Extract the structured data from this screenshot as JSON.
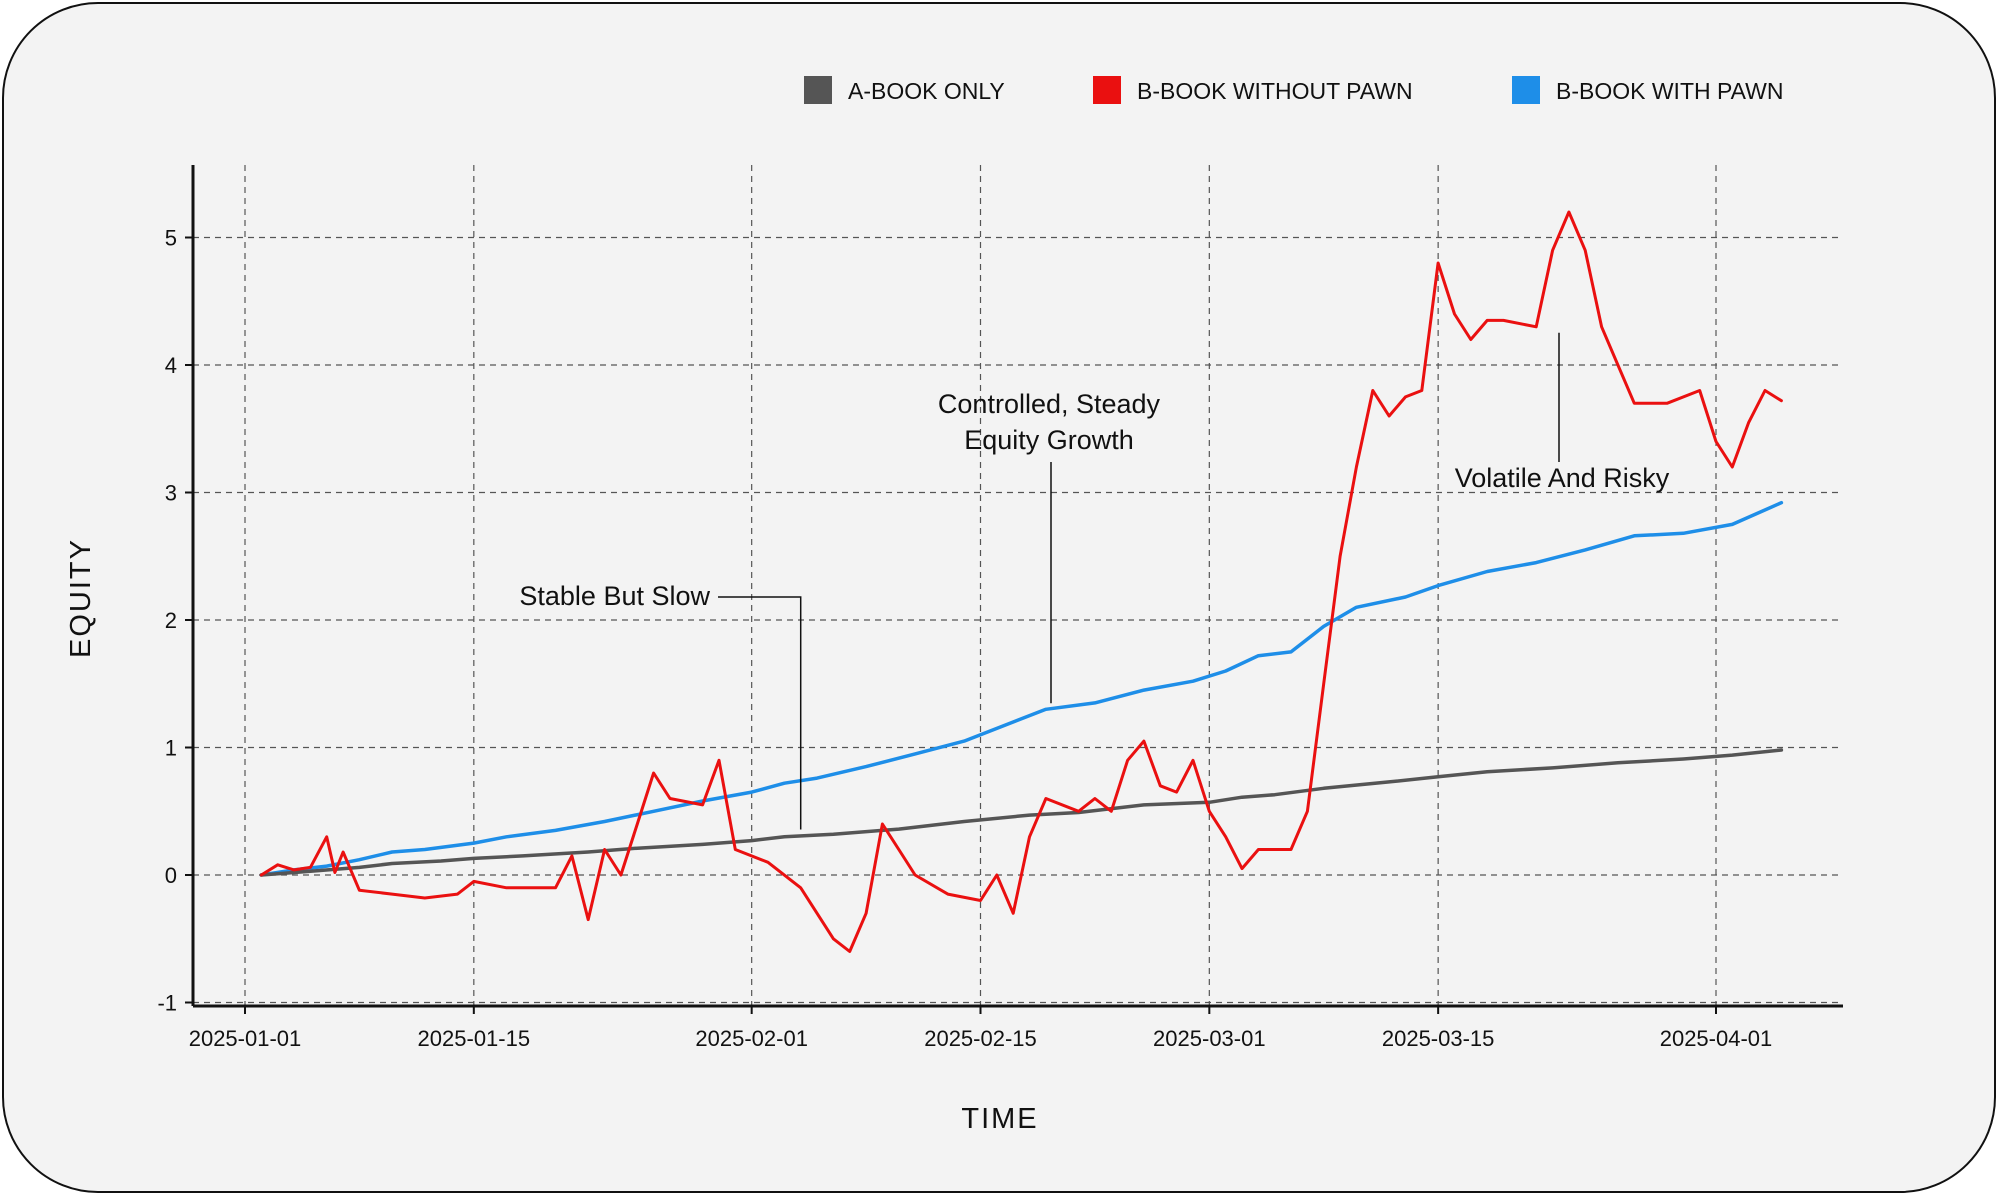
{
  "chart_data": {
    "type": "line",
    "xlabel": "TIME",
    "ylabel": "EQUITY",
    "x_range": [
      "2025-01-01",
      "2025-04-06"
    ],
    "ylim": [
      -1,
      5.5
    ],
    "x_ticks": [
      "2025-01-01",
      "2025-01-15",
      "2025-02-01",
      "2025-02-15",
      "2025-03-01",
      "2025-03-15",
      "2025-04-01"
    ],
    "y_ticks": [
      -1,
      0,
      1,
      2,
      3,
      4,
      5
    ],
    "grid": true,
    "legend_position": "top-right",
    "series": [
      {
        "name": "A-BOOK ONLY",
        "color": "#555555",
        "points": [
          [
            "2025-01-02",
            0.0
          ],
          [
            "2025-01-05",
            0.03
          ],
          [
            "2025-01-08",
            0.06
          ],
          [
            "2025-01-10",
            0.09
          ],
          [
            "2025-01-13",
            0.11
          ],
          [
            "2025-01-15",
            0.13
          ],
          [
            "2025-01-18",
            0.15
          ],
          [
            "2025-01-22",
            0.18
          ],
          [
            "2025-01-25",
            0.21
          ],
          [
            "2025-01-29",
            0.24
          ],
          [
            "2025-02-01",
            0.27
          ],
          [
            "2025-02-03",
            0.3
          ],
          [
            "2025-02-06",
            0.32
          ],
          [
            "2025-02-10",
            0.36
          ],
          [
            "2025-02-14",
            0.42
          ],
          [
            "2025-02-18",
            0.47
          ],
          [
            "2025-02-21",
            0.49
          ],
          [
            "2025-02-25",
            0.55
          ],
          [
            "2025-03-01",
            0.57
          ],
          [
            "2025-03-03",
            0.61
          ],
          [
            "2025-03-05",
            0.63
          ],
          [
            "2025-03-08",
            0.68
          ],
          [
            "2025-03-12",
            0.73
          ],
          [
            "2025-03-15",
            0.77
          ],
          [
            "2025-03-18",
            0.81
          ],
          [
            "2025-03-22",
            0.84
          ],
          [
            "2025-03-26",
            0.88
          ],
          [
            "2025-03-30",
            0.91
          ],
          [
            "2025-04-02",
            0.94
          ],
          [
            "2025-04-05",
            0.98
          ]
        ]
      },
      {
        "name": "B-BOOK WITHOUT PAWN",
        "color": "#ea1010",
        "points": [
          [
            "2025-01-02",
            0.0
          ],
          [
            "2025-01-03",
            0.08
          ],
          [
            "2025-01-04",
            0.04
          ],
          [
            "2025-01-05",
            0.06
          ],
          [
            "2025-01-06",
            0.3
          ],
          [
            "2025-01-06.5",
            0.02
          ],
          [
            "2025-01-07",
            0.18
          ],
          [
            "2025-01-08",
            -0.12
          ],
          [
            "2025-01-10",
            -0.15
          ],
          [
            "2025-01-12",
            -0.18
          ],
          [
            "2025-01-14",
            -0.15
          ],
          [
            "2025-01-15",
            -0.05
          ],
          [
            "2025-01-17",
            -0.1
          ],
          [
            "2025-01-20",
            -0.1
          ],
          [
            "2025-01-21",
            0.15
          ],
          [
            "2025-01-22",
            -0.35
          ],
          [
            "2025-01-23",
            0.2
          ],
          [
            "2025-01-24",
            0.0
          ],
          [
            "2025-01-25",
            0.4
          ],
          [
            "2025-01-26",
            0.8
          ],
          [
            "2025-01-27",
            0.6
          ],
          [
            "2025-01-29",
            0.55
          ],
          [
            "2025-01-30",
            0.9
          ],
          [
            "2025-01-31",
            0.2
          ],
          [
            "2025-02-02",
            0.1
          ],
          [
            "2025-02-04",
            -0.1
          ],
          [
            "2025-02-06",
            -0.5
          ],
          [
            "2025-02-07",
            -0.6
          ],
          [
            "2025-02-08",
            -0.3
          ],
          [
            "2025-02-09",
            0.4
          ],
          [
            "2025-02-10",
            0.2
          ],
          [
            "2025-02-11",
            0.0
          ],
          [
            "2025-02-13",
            -0.15
          ],
          [
            "2025-02-15",
            -0.2
          ],
          [
            "2025-02-16",
            0.0
          ],
          [
            "2025-02-17",
            -0.3
          ],
          [
            "2025-02-18",
            0.3
          ],
          [
            "2025-02-19",
            0.6
          ],
          [
            "2025-02-21",
            0.5
          ],
          [
            "2025-02-22",
            0.6
          ],
          [
            "2025-02-23",
            0.5
          ],
          [
            "2025-02-24",
            0.9
          ],
          [
            "2025-02-25",
            1.05
          ],
          [
            "2025-02-26",
            0.7
          ],
          [
            "2025-02-27",
            0.65
          ],
          [
            "2025-02-28",
            0.9
          ],
          [
            "2025-03-01",
            0.5
          ],
          [
            "2025-03-02",
            0.3
          ],
          [
            "2025-03-03",
            0.05
          ],
          [
            "2025-03-04",
            0.2
          ],
          [
            "2025-03-06",
            0.2
          ],
          [
            "2025-03-07",
            0.5
          ],
          [
            "2025-03-08",
            1.5
          ],
          [
            "2025-03-09",
            2.5
          ],
          [
            "2025-03-10",
            3.2
          ],
          [
            "2025-03-11",
            3.8
          ],
          [
            "2025-03-12",
            3.6
          ],
          [
            "2025-03-13",
            3.75
          ],
          [
            "2025-03-14",
            3.8
          ],
          [
            "2025-03-15",
            4.8
          ],
          [
            "2025-03-16",
            4.4
          ],
          [
            "2025-03-17",
            4.2
          ],
          [
            "2025-03-18",
            4.35
          ],
          [
            "2025-03-19",
            4.35
          ],
          [
            "2025-03-21",
            4.3
          ],
          [
            "2025-03-22",
            4.9
          ],
          [
            "2025-03-23",
            5.2
          ],
          [
            "2025-03-24",
            4.9
          ],
          [
            "2025-03-25",
            4.3
          ],
          [
            "2025-03-26",
            4.0
          ],
          [
            "2025-03-27",
            3.7
          ],
          [
            "2025-03-29",
            3.7
          ],
          [
            "2025-03-31",
            3.8
          ],
          [
            "2025-04-01",
            3.4
          ],
          [
            "2025-04-02",
            3.2
          ],
          [
            "2025-04-03",
            3.55
          ],
          [
            "2025-04-04",
            3.8
          ],
          [
            "2025-04-05",
            3.72
          ]
        ]
      },
      {
        "name": "B-BOOK WITH PAWN",
        "color": "#1e8ee8",
        "points": [
          [
            "2025-01-02",
            0.0
          ],
          [
            "2025-01-04",
            0.04
          ],
          [
            "2025-01-06",
            0.07
          ],
          [
            "2025-01-08",
            0.12
          ],
          [
            "2025-01-10",
            0.18
          ],
          [
            "2025-01-12",
            0.2
          ],
          [
            "2025-01-15",
            0.25
          ],
          [
            "2025-01-17",
            0.3
          ],
          [
            "2025-01-20",
            0.35
          ],
          [
            "2025-01-23",
            0.42
          ],
          [
            "2025-01-26",
            0.5
          ],
          [
            "2025-01-29",
            0.58
          ],
          [
            "2025-02-01",
            0.65
          ],
          [
            "2025-02-03",
            0.72
          ],
          [
            "2025-02-05",
            0.76
          ],
          [
            "2025-02-08",
            0.85
          ],
          [
            "2025-02-11",
            0.95
          ],
          [
            "2025-02-14",
            1.05
          ],
          [
            "2025-02-17",
            1.2
          ],
          [
            "2025-02-19",
            1.3
          ],
          [
            "2025-02-22",
            1.35
          ],
          [
            "2025-02-25",
            1.45
          ],
          [
            "2025-02-28",
            1.52
          ],
          [
            "2025-03-02",
            1.6
          ],
          [
            "2025-03-04",
            1.72
          ],
          [
            "2025-03-06",
            1.75
          ],
          [
            "2025-03-08",
            1.95
          ],
          [
            "2025-03-10",
            2.1
          ],
          [
            "2025-03-13",
            2.18
          ],
          [
            "2025-03-15",
            2.27
          ],
          [
            "2025-03-18",
            2.38
          ],
          [
            "2025-03-21",
            2.45
          ],
          [
            "2025-03-24",
            2.55
          ],
          [
            "2025-03-27",
            2.66
          ],
          [
            "2025-03-30",
            2.68
          ],
          [
            "2025-04-02",
            2.75
          ],
          [
            "2025-04-05",
            2.92
          ]
        ]
      }
    ],
    "annotations": [
      {
        "lines": [
          "Stable But Slow"
        ],
        "target": [
          "2025-02-04",
          0.31
        ]
      },
      {
        "lines": [
          "Controlled, Steady",
          "Equity Growth"
        ],
        "target": [
          "2025-02-19",
          1.3
        ]
      },
      {
        "lines": [
          "Volatile And Risky"
        ],
        "target": [
          "2025-03-23",
          4.3
        ]
      }
    ]
  }
}
